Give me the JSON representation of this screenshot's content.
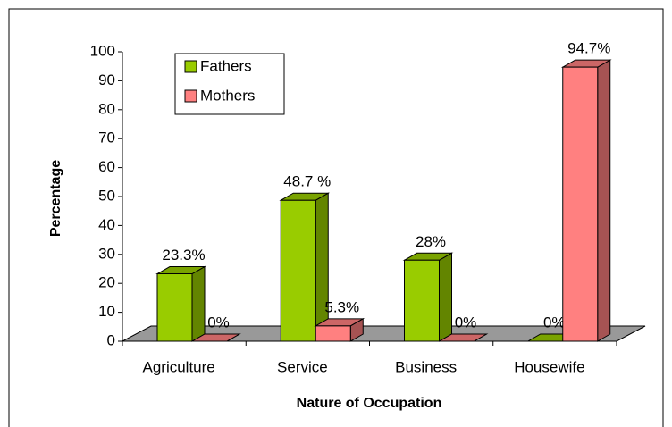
{
  "chart_data": {
    "type": "bar3d",
    "x_label": "Nature of Occupation",
    "y_label": "Percentage",
    "categories": [
      "Agriculture",
      "Service",
      "Business",
      "Housewife"
    ],
    "series": [
      {
        "name": "Fathers",
        "color": "#99cc00",
        "values": [
          23.3,
          48.7,
          28,
          0
        ],
        "value_labels": [
          "23.3%",
          "48.7 %",
          "28%",
          "0%"
        ]
      },
      {
        "name": "Mothers",
        "color": "#ff8080",
        "values": [
          0,
          5.3,
          0,
          94.7
        ],
        "value_labels": [
          "0%",
          "5.3%",
          "0%",
          "94.7%"
        ]
      }
    ],
    "ylim": [
      0,
      100
    ],
    "yticks": [
      0,
      10,
      20,
      30,
      40,
      50,
      60,
      70,
      80,
      90,
      100
    ],
    "legend": "upper left"
  }
}
